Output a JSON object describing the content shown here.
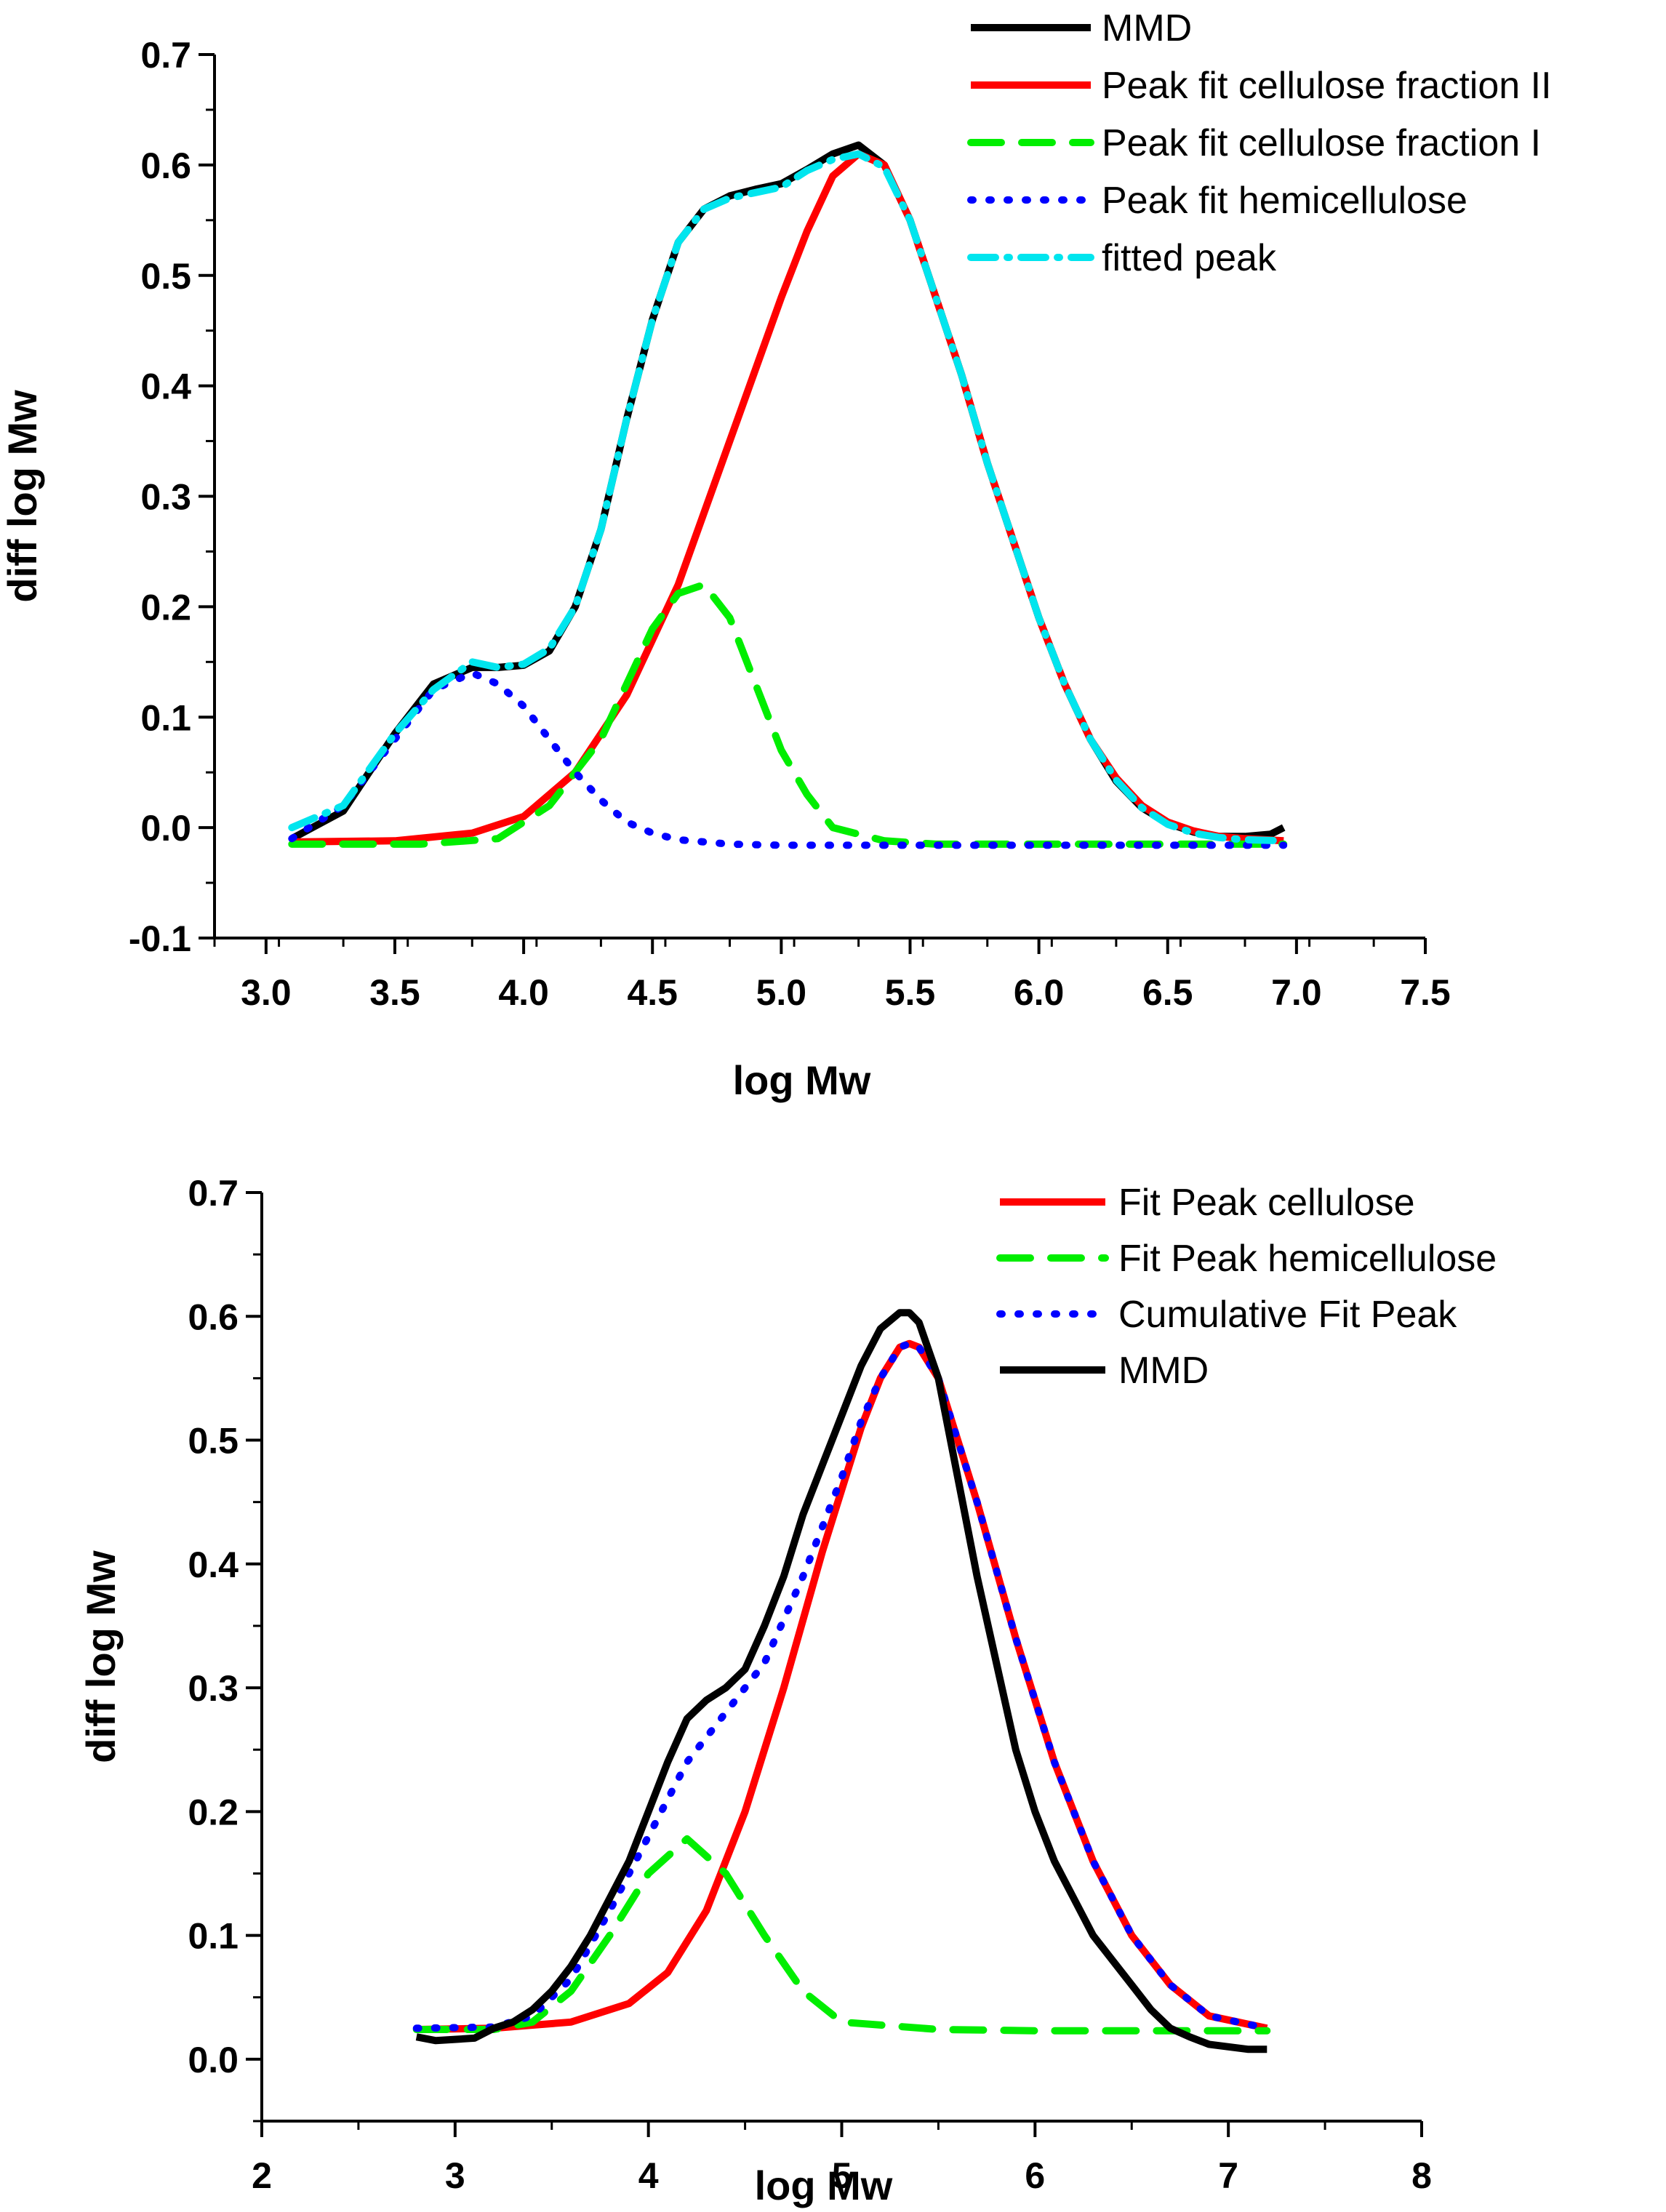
{
  "chart_data": [
    {
      "type": "line",
      "xlabel": "log Mw",
      "ylabel": "diff log Mw",
      "xlim": [
        2.8,
        7.5
      ],
      "ylim": [
        -0.1,
        0.7
      ],
      "xticks": [
        3.0,
        3.5,
        4.0,
        4.5,
        5.0,
        5.5,
        6.0,
        6.5,
        7.0,
        7.5
      ],
      "xtick_labels": [
        "3.0",
        "3.5",
        "4.0",
        "4.5",
        "5.0",
        "5.5",
        "6.0",
        "6.5",
        "7.0",
        "7.5"
      ],
      "yticks": [
        -0.1,
        0.0,
        0.1,
        0.2,
        0.3,
        0.4,
        0.5,
        0.6,
        0.7
      ],
      "ytick_labels": [
        "-0.1",
        "0.0",
        "0.1",
        "0.2",
        "0.3",
        "0.4",
        "0.5",
        "0.6",
        "0.7"
      ],
      "legend_position": "top-right",
      "series": [
        {
          "name": "MMD",
          "color": "#000000",
          "style": "solid",
          "x": [
            3.1,
            3.3,
            3.5,
            3.65,
            3.8,
            3.9,
            4.0,
            4.1,
            4.2,
            4.3,
            4.4,
            4.5,
            4.6,
            4.7,
            4.8,
            4.9,
            5.0,
            5.1,
            5.2,
            5.3,
            5.4,
            5.5,
            5.6,
            5.7,
            5.8,
            5.9,
            6.0,
            6.1,
            6.2,
            6.3,
            6.4,
            6.5,
            6.6,
            6.7,
            6.8,
            6.9,
            6.95
          ],
          "y": [
            -0.01,
            0.015,
            0.085,
            0.13,
            0.145,
            0.145,
            0.147,
            0.16,
            0.2,
            0.27,
            0.37,
            0.46,
            0.53,
            0.56,
            0.572,
            0.578,
            0.583,
            0.596,
            0.61,
            0.618,
            0.6,
            0.55,
            0.48,
            0.41,
            0.33,
            0.26,
            0.19,
            0.13,
            0.08,
            0.042,
            0.018,
            0.004,
            -0.004,
            -0.008,
            -0.008,
            -0.006,
            0.0
          ]
        },
        {
          "name": "Peak fit cellulose fraction II",
          "color": "#ff0000",
          "style": "solid",
          "x": [
            3.1,
            3.5,
            3.8,
            4.0,
            4.2,
            4.4,
            4.6,
            4.8,
            5.0,
            5.1,
            5.2,
            5.3,
            5.4,
            5.5,
            5.6,
            5.7,
            5.8,
            5.9,
            6.0,
            6.1,
            6.2,
            6.3,
            6.4,
            6.5,
            6.6,
            6.7,
            6.8,
            6.95
          ],
          "y": [
            -0.013,
            -0.012,
            -0.005,
            0.01,
            0.05,
            0.12,
            0.22,
            0.35,
            0.48,
            0.54,
            0.59,
            0.61,
            0.6,
            0.55,
            0.48,
            0.41,
            0.33,
            0.26,
            0.19,
            0.13,
            0.08,
            0.045,
            0.02,
            0.005,
            -0.003,
            -0.008,
            -0.01,
            -0.012
          ]
        },
        {
          "name": "Peak fit cellulose fraction I",
          "color": "#00ee00",
          "style": "dash",
          "x": [
            3.1,
            3.6,
            3.9,
            4.1,
            4.3,
            4.5,
            4.6,
            4.7,
            4.8,
            4.9,
            5.0,
            5.1,
            5.2,
            5.4,
            5.6,
            6.0,
            6.5,
            6.95
          ],
          "y": [
            -0.015,
            -0.015,
            -0.01,
            0.02,
            0.08,
            0.18,
            0.212,
            0.22,
            0.19,
            0.13,
            0.07,
            0.03,
            0.0,
            -0.012,
            -0.015,
            -0.015,
            -0.015,
            -0.015
          ]
        },
        {
          "name": "Peak fit hemicellulose",
          "color": "#0000ff",
          "style": "dot",
          "x": [
            3.1,
            3.3,
            3.5,
            3.65,
            3.8,
            3.9,
            4.0,
            4.1,
            4.2,
            4.3,
            4.4,
            4.5,
            4.6,
            4.8,
            5.0,
            5.5,
            6.0,
            6.5,
            6.95
          ],
          "y": [
            -0.01,
            0.02,
            0.08,
            0.125,
            0.14,
            0.13,
            0.11,
            0.08,
            0.05,
            0.025,
            0.005,
            -0.005,
            -0.011,
            -0.015,
            -0.016,
            -0.016,
            -0.016,
            -0.016,
            -0.016
          ]
        },
        {
          "name": "fitted peak",
          "color": "#00e5ee",
          "style": "dashdot",
          "x": [
            3.1,
            3.3,
            3.5,
            3.65,
            3.8,
            3.9,
            4.0,
            4.1,
            4.2,
            4.3,
            4.4,
            4.5,
            4.6,
            4.7,
            4.8,
            4.9,
            5.0,
            5.1,
            5.2,
            5.3,
            5.4,
            5.5,
            5.6,
            5.7,
            5.8,
            5.9,
            6.0,
            6.1,
            6.2,
            6.3,
            6.4,
            6.5,
            6.6,
            6.7,
            6.8,
            6.95
          ],
          "y": [
            0.0,
            0.02,
            0.085,
            0.125,
            0.15,
            0.145,
            0.148,
            0.162,
            0.2,
            0.27,
            0.37,
            0.46,
            0.53,
            0.56,
            0.57,
            0.575,
            0.58,
            0.595,
            0.605,
            0.61,
            0.598,
            0.55,
            0.48,
            0.41,
            0.33,
            0.26,
            0.19,
            0.13,
            0.08,
            0.043,
            0.018,
            0.003,
            -0.005,
            -0.009,
            -0.011,
            -0.012
          ]
        }
      ]
    },
    {
      "type": "line",
      "xlabel": "log Mw",
      "ylabel": "diff log Mw",
      "xlim": [
        2.0,
        8.0
      ],
      "ylim": [
        -0.05,
        0.7
      ],
      "xticks": [
        2,
        3,
        4,
        5,
        6,
        7,
        8
      ],
      "xtick_labels": [
        "2",
        "3",
        "4",
        "5",
        "6",
        "7",
        "8"
      ],
      "yticks": [
        0.0,
        0.1,
        0.2,
        0.3,
        0.4,
        0.5,
        0.6,
        0.7
      ],
      "ytick_labels": [
        "0.0",
        "0.1",
        "0.2",
        "0.3",
        "0.4",
        "0.5",
        "0.6",
        "0.7"
      ],
      "legend_position": "top-right",
      "series": [
        {
          "name": "Fit Peak cellulose",
          "color": "#ff0000",
          "style": "solid",
          "x": [
            2.8,
            3.2,
            3.6,
            3.9,
            4.1,
            4.3,
            4.5,
            4.7,
            4.9,
            5.1,
            5.2,
            5.3,
            5.35,
            5.4,
            5.5,
            5.7,
            5.9,
            6.1,
            6.3,
            6.5,
            6.7,
            6.9,
            7.2
          ],
          "y": [
            0.024,
            0.025,
            0.03,
            0.045,
            0.07,
            0.12,
            0.2,
            0.3,
            0.41,
            0.51,
            0.55,
            0.575,
            0.578,
            0.575,
            0.55,
            0.45,
            0.34,
            0.24,
            0.16,
            0.1,
            0.06,
            0.035,
            0.025
          ]
        },
        {
          "name": "Fit Peak hemicellulose",
          "color": "#00ee00",
          "style": "dash",
          "x": [
            2.8,
            3.2,
            3.4,
            3.6,
            3.8,
            4.0,
            4.2,
            4.4,
            4.6,
            4.8,
            5.0,
            5.5,
            6.0,
            6.5,
            7.2
          ],
          "y": [
            0.024,
            0.024,
            0.03,
            0.055,
            0.1,
            0.15,
            0.178,
            0.15,
            0.1,
            0.055,
            0.03,
            0.024,
            0.023,
            0.023,
            0.023
          ]
        },
        {
          "name": "Cumulative Fit Peak",
          "color": "#0000ff",
          "style": "dot",
          "x": [
            2.8,
            3.2,
            3.4,
            3.6,
            3.8,
            4.0,
            4.2,
            4.4,
            4.6,
            4.8,
            5.0,
            5.1,
            5.2,
            5.3,
            5.35,
            5.4,
            5.5,
            5.7,
            5.9,
            6.1,
            6.3,
            6.5,
            6.7,
            6.9,
            7.2
          ],
          "y": [
            0.025,
            0.026,
            0.035,
            0.065,
            0.12,
            0.18,
            0.24,
            0.28,
            0.32,
            0.39,
            0.47,
            0.515,
            0.55,
            0.575,
            0.578,
            0.575,
            0.55,
            0.45,
            0.34,
            0.24,
            0.16,
            0.1,
            0.06,
            0.035,
            0.025
          ]
        },
        {
          "name": "MMD",
          "color": "#000000",
          "style": "solid",
          "x": [
            2.8,
            2.9,
            3.0,
            3.1,
            3.2,
            3.3,
            3.4,
            3.5,
            3.6,
            3.7,
            3.8,
            3.9,
            4.0,
            4.1,
            4.2,
            4.3,
            4.4,
            4.5,
            4.6,
            4.7,
            4.8,
            4.9,
            5.0,
            5.1,
            5.2,
            5.3,
            5.35,
            5.4,
            5.5,
            5.6,
            5.7,
            5.8,
            5.9,
            6.0,
            6.1,
            6.2,
            6.3,
            6.4,
            6.5,
            6.6,
            6.7,
            6.8,
            6.9,
            7.0,
            7.1,
            7.2
          ],
          "y": [
            0.018,
            0.015,
            0.016,
            0.017,
            0.025,
            0.03,
            0.04,
            0.055,
            0.075,
            0.1,
            0.13,
            0.16,
            0.2,
            0.24,
            0.275,
            0.29,
            0.3,
            0.315,
            0.35,
            0.39,
            0.44,
            0.48,
            0.52,
            0.56,
            0.59,
            0.603,
            0.603,
            0.595,
            0.55,
            0.47,
            0.39,
            0.32,
            0.25,
            0.2,
            0.16,
            0.13,
            0.1,
            0.08,
            0.06,
            0.04,
            0.025,
            0.018,
            0.012,
            0.01,
            0.008,
            0.008
          ]
        }
      ]
    }
  ]
}
